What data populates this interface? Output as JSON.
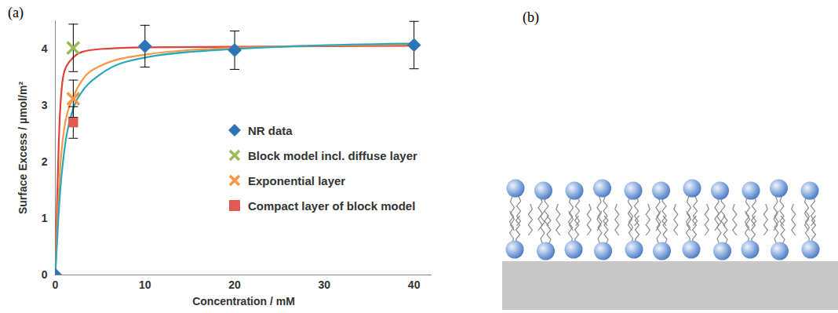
{
  "chart_data": {
    "type": "scatter",
    "title": "(a)",
    "x_label": "Concentration / mM",
    "y_label": "Surface Excess / µmol/m²",
    "xlim": [
      0,
      42
    ],
    "ylim": [
      0,
      4.5
    ],
    "xticks": [
      0,
      10,
      20,
      30,
      40
    ],
    "yticks": [
      0,
      1,
      2,
      3,
      4
    ],
    "grid": false,
    "legend": "right",
    "series": [
      {
        "type": "line",
        "color": "#e0413a",
        "x": [
          0,
          0.5,
          1,
          2,
          3,
          5,
          10,
          20,
          40
        ],
        "values": [
          0,
          2.8,
          3.6,
          3.85,
          3.95,
          4.0,
          4.03,
          4.04,
          4.06
        ]
      },
      {
        "type": "line",
        "color": "#f79646",
        "x": [
          0,
          0.5,
          1,
          2,
          3,
          5,
          10,
          20,
          40
        ],
        "values": [
          0,
          1.8,
          2.6,
          3.15,
          3.45,
          3.7,
          3.9,
          4.02,
          4.08
        ]
      },
      {
        "type": "line",
        "color": "#2aa8b8",
        "x": [
          0,
          0.5,
          1,
          2,
          3,
          5,
          10,
          20,
          40
        ],
        "values": [
          0,
          1.4,
          2.2,
          2.95,
          3.25,
          3.55,
          3.85,
          4.0,
          4.1
        ]
      },
      {
        "type": "scatter",
        "name": "NR data",
        "color": "#2e75b6",
        "marker": "diamond",
        "x": [
          0,
          10,
          20,
          40
        ],
        "values": [
          0,
          4.05,
          3.98,
          4.07
        ],
        "errors": [
          null,
          0.37,
          0.34,
          0.42
        ]
      },
      {
        "type": "scatter",
        "name": "Block model incl. diffuse layer",
        "color": "#9bbb59",
        "marker": "x",
        "x": [
          2
        ],
        "values": [
          4.02
        ],
        "errors": [
          0.42
        ]
      },
      {
        "type": "scatter",
        "name": "Exponential layer",
        "color": "#f79646",
        "marker": "x",
        "x": [
          2
        ],
        "values": [
          3.12
        ],
        "errors": [
          0.33
        ]
      },
      {
        "type": "scatter",
        "name": "Compact layer of block model",
        "color": "#e05a4f",
        "marker": "square",
        "x": [
          2
        ],
        "values": [
          2.7
        ],
        "errors": [
          0.28
        ]
      }
    ]
  },
  "diagram": {
    "title": "(b)"
  }
}
